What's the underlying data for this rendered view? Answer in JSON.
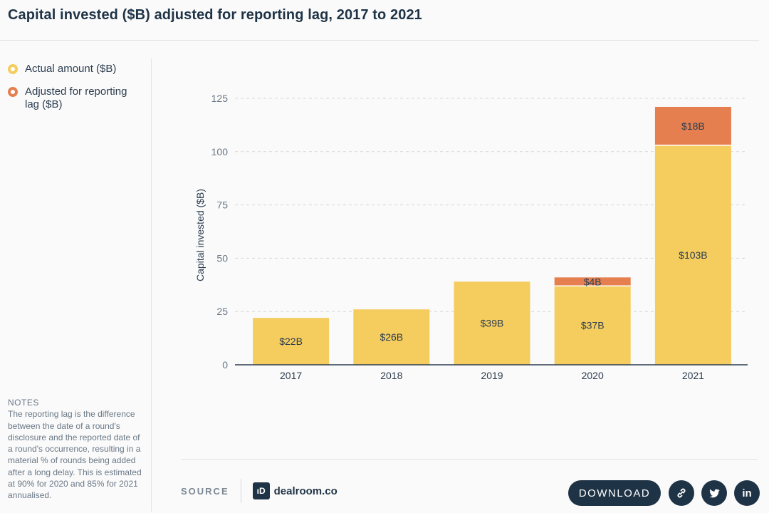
{
  "title": "Capital invested ($B) adjusted for reporting lag, 2017 to 2021",
  "colors": {
    "actual": "#f5cd5f",
    "adjusted": "#e67f4f",
    "grid": "#d6d6d6",
    "text": "#2c3d4f",
    "dark": "#1f3346"
  },
  "legend": [
    {
      "label": "Actual amount ($B)",
      "color": "#f5cd5f"
    },
    {
      "label": "Adjusted for reporting lag ($B)",
      "color": "#e67f4f"
    }
  ],
  "notes": {
    "heading": "NOTES",
    "text": "The reporting lag is the difference between the date of a round's disclosure and the reported date of a round's occurrence, resulting in a material % of rounds being added after a long delay. This is estimated at 90% for 2020 and 85% for 2021 annualised."
  },
  "footer": {
    "source_label": "SOURCE",
    "logo_mark": "ıD",
    "logo_text": "dealroom.co",
    "download_label": "DOWNLOAD",
    "icons": [
      "link-icon",
      "twitter-icon",
      "linkedin-icon"
    ],
    "linkedin_glyph": "in"
  },
  "chart_data": {
    "type": "bar",
    "stacked": true,
    "categories": [
      "2017",
      "2018",
      "2019",
      "2020",
      "2021"
    ],
    "series": [
      {
        "name": "Actual amount ($B)",
        "values": [
          22,
          26,
          39,
          37,
          103
        ],
        "labels": [
          "$22B",
          "$26B",
          "$39B",
          "$37B",
          "$103B"
        ]
      },
      {
        "name": "Adjusted for reporting lag ($B)",
        "values": [
          0,
          0,
          0,
          4,
          18
        ],
        "labels": [
          "",
          "",
          "",
          "$4B",
          "$18B"
        ]
      }
    ],
    "ylabel": "Capital invested ($B)",
    "xlabel": "",
    "ylim": [
      0,
      125
    ],
    "yticks": [
      0,
      25,
      50,
      75,
      100,
      125
    ],
    "grid": true,
    "legend_position": "left"
  }
}
